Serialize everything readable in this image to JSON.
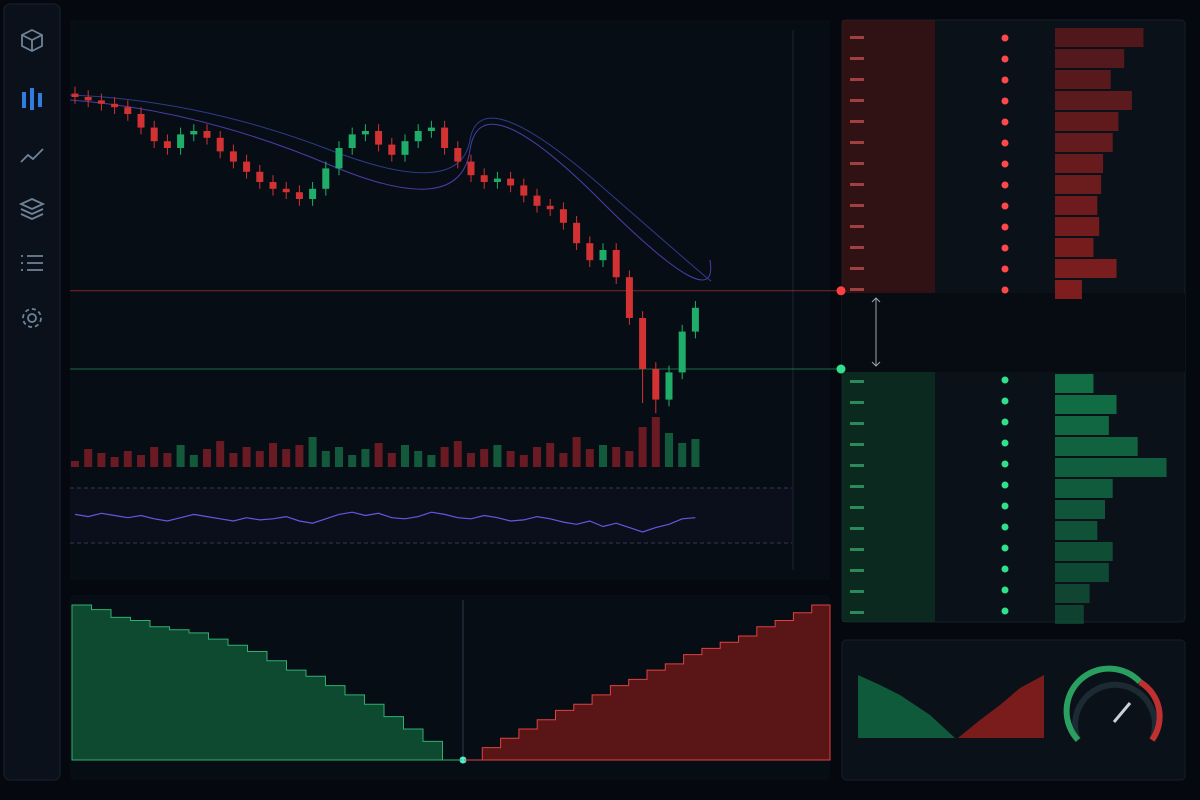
{
  "chart_data": [
    {
      "type": "candlestick",
      "ylim": [
        0,
        100
      ],
      "ask_level": 38,
      "bid_level": 15,
      "open": [
        96,
        95,
        94,
        93,
        92,
        90,
        86,
        82,
        80,
        84,
        85,
        83,
        79,
        76,
        73,
        70,
        68,
        67,
        65,
        68,
        74,
        80,
        84,
        85,
        81,
        78,
        82,
        85,
        86,
        80,
        76,
        72,
        70,
        71,
        69,
        66,
        63,
        62,
        58,
        52,
        47,
        50,
        42,
        30,
        15,
        6,
        14,
        26
      ],
      "high": [
        98,
        97,
        96,
        95,
        94,
        92,
        88,
        84,
        86,
        87,
        87,
        85,
        81,
        78,
        75,
        72,
        70,
        69,
        70,
        76,
        82,
        86,
        87,
        87,
        83,
        84,
        87,
        88,
        88,
        82,
        78,
        74,
        73,
        73,
        71,
        68,
        65,
        64,
        60,
        54,
        52,
        52,
        44,
        32,
        17,
        16,
        28,
        35
      ],
      "low": [
        93,
        92,
        91,
        90,
        88,
        84,
        80,
        78,
        78,
        82,
        81,
        77,
        74,
        71,
        68,
        66,
        65,
        63,
        63,
        66,
        72,
        78,
        82,
        79,
        76,
        76,
        80,
        83,
        78,
        74,
        70,
        68,
        68,
        67,
        64,
        61,
        60,
        56,
        50,
        45,
        45,
        40,
        28,
        5,
        2,
        4,
        12,
        24
      ],
      "close": [
        95,
        94,
        93,
        92,
        90,
        86,
        82,
        80,
        84,
        85,
        83,
        79,
        76,
        73,
        70,
        68,
        67,
        65,
        68,
        74,
        80,
        84,
        85,
        81,
        78,
        82,
        85,
        86,
        80,
        76,
        72,
        70,
        71,
        69,
        66,
        63,
        62,
        58,
        52,
        47,
        50,
        42,
        30,
        15,
        6,
        14,
        26,
        33
      ]
    },
    {
      "type": "bar",
      "ylim": [
        0,
        50
      ],
      "values": [
        6,
        18,
        14,
        10,
        16,
        12,
        20,
        14,
        22,
        12,
        18,
        26,
        14,
        20,
        16,
        24,
        18,
        22,
        30,
        16,
        20,
        12,
        18,
        24,
        14,
        22,
        16,
        12,
        20,
        26,
        14,
        18,
        22,
        16,
        12,
        20,
        24,
        14,
        30,
        18,
        22,
        20,
        16,
        40,
        50,
        34,
        24,
        28
      ]
    },
    {
      "type": "line",
      "ylim": [
        0,
        100
      ],
      "values": [
        52,
        48,
        54,
        50,
        46,
        50,
        44,
        40,
        46,
        52,
        48,
        44,
        40,
        46,
        42,
        44,
        48,
        40,
        36,
        44,
        52,
        56,
        50,
        54,
        46,
        44,
        48,
        56,
        52,
        46,
        44,
        50,
        46,
        40,
        42,
        48,
        44,
        38,
        34,
        40,
        30,
        36,
        28,
        20,
        28,
        34,
        44,
        46
      ]
    },
    {
      "type": "area",
      "ylim": [
        0,
        100
      ],
      "bids": [
        100,
        97,
        92,
        90,
        86,
        84,
        82,
        78,
        74,
        70,
        64,
        58,
        54,
        48,
        42,
        36,
        28,
        20,
        12,
        0
      ],
      "asks": [
        0,
        8,
        14,
        20,
        26,
        32,
        36,
        42,
        48,
        52,
        58,
        62,
        68,
        72,
        76,
        80,
        86,
        90,
        95,
        100
      ]
    },
    {
      "type": "hbar",
      "xlim": [
        0,
        130
      ],
      "asks": [
        92,
        72,
        58,
        80,
        66,
        60,
        50,
        48,
        44,
        46,
        40,
        64,
        28
      ],
      "bids": [
        40,
        64,
        56,
        86,
        116,
        60,
        52,
        44,
        60,
        56,
        36,
        30
      ]
    }
  ]
}
